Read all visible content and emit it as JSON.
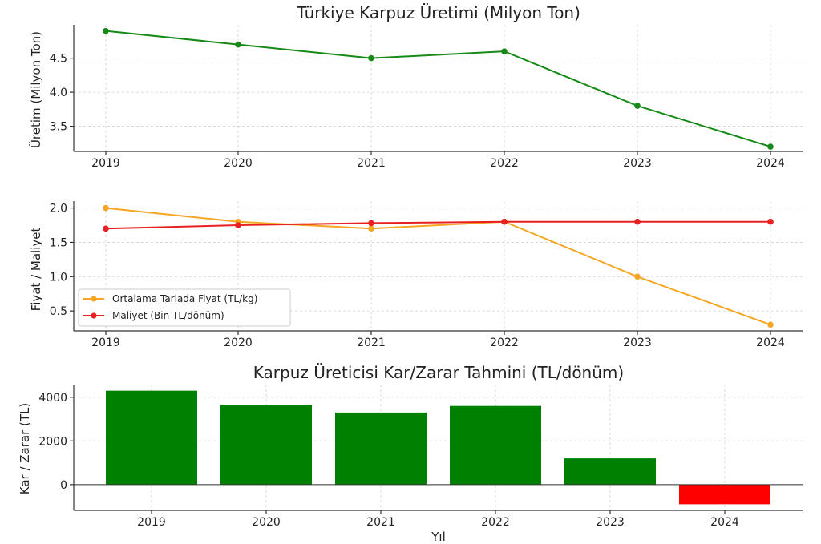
{
  "chart_data": [
    {
      "type": "line",
      "title": "Türkiye Karpuz Üretimi (Milyon Ton)",
      "ylabel": "Üretim (Milyon Ton)",
      "xlabel": "",
      "categories": [
        "2019",
        "2020",
        "2021",
        "2022",
        "2023",
        "2024"
      ],
      "yticks": [
        "3.5",
        "4.0",
        "4.5"
      ],
      "ylim": [
        3.13,
        4.99
      ],
      "grid": true,
      "series": [
        {
          "values": [
            4.9,
            4.7,
            4.5,
            4.6,
            3.8,
            3.2
          ],
          "color": "#168a16"
        }
      ]
    },
    {
      "type": "line",
      "title": "",
      "ylabel": "Fiyat / Maliyet",
      "xlabel": "",
      "categories": [
        "2019",
        "2020",
        "2021",
        "2022",
        "2023",
        "2024"
      ],
      "yticks": [
        "0.5",
        "1.0",
        "1.5",
        "2.0"
      ],
      "ylim": [
        0.21,
        2.1
      ],
      "grid": true,
      "legend_position": "lower-left",
      "series": [
        {
          "name": "Ortalama Tarlada Fiyat (TL/kg)",
          "values": [
            2.0,
            1.8,
            1.7,
            1.8,
            1.0,
            0.3
          ],
          "color": "#f5a623"
        },
        {
          "name": "Maliyet (Bin TL/dönüm)",
          "values": [
            1.7,
            1.75,
            1.78,
            1.8,
            1.8,
            1.8
          ],
          "color": "#e82020"
        }
      ]
    },
    {
      "type": "bar",
      "title": "Karpuz Üreticisi Kar/Zarar Tahmini (TL/dönüm)",
      "ylabel": "Kar / Zarar (TL)",
      "xlabel": "Yıl",
      "categories": [
        "2019",
        "2020",
        "2021",
        "2022",
        "2023",
        "2024"
      ],
      "values": [
        4300,
        3650,
        3300,
        3600,
        1200,
        -900
      ],
      "yticks": [
        "0",
        "2000",
        "4000"
      ],
      "ylim": [
        -1180,
        4580
      ],
      "grid": true,
      "colors": {
        "positive": "#008000",
        "negative": "#ff0000"
      }
    }
  ]
}
